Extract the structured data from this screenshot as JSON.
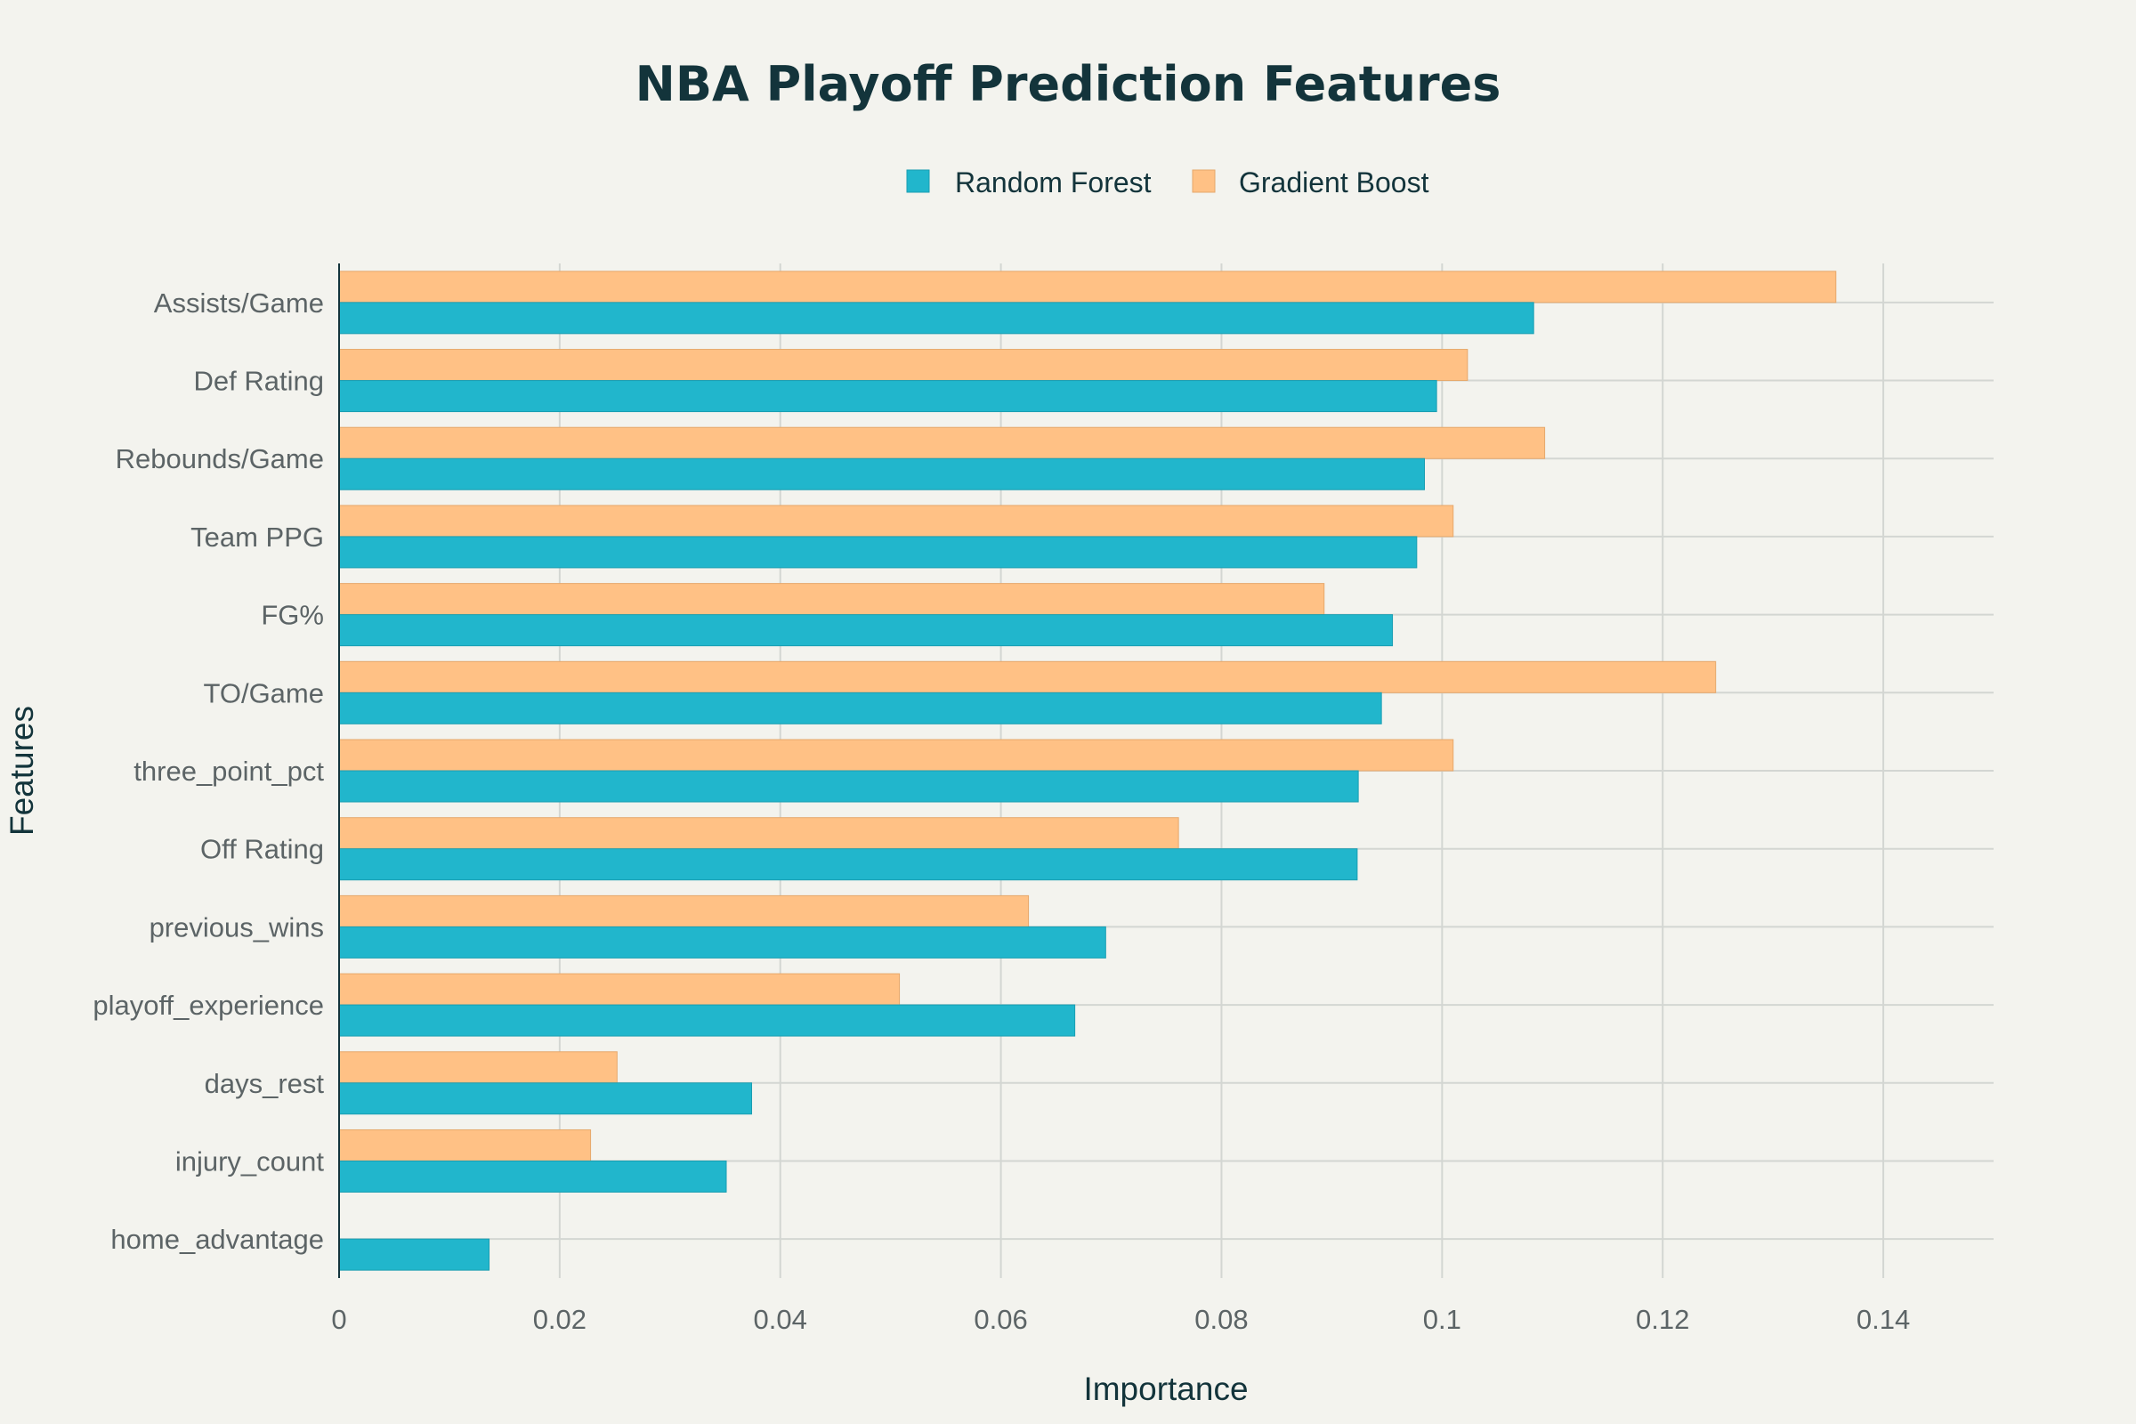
{
  "chart_data": {
    "type": "bar",
    "orientation": "horizontal",
    "title": "NBA Playoff Prediction Features",
    "xlabel": "Importance",
    "ylabel": "Features",
    "xlim": [
      0,
      0.15
    ],
    "xticks": [
      0,
      0.02,
      0.04,
      0.06,
      0.08,
      0.1,
      0.12,
      0.14
    ],
    "xtick_labels": [
      "0",
      "0.02",
      "0.04",
      "0.06",
      "0.08",
      "0.1",
      "0.12",
      "0.14"
    ],
    "grid": true,
    "legend_position": "top-center",
    "categories": [
      "Assists/Game",
      "Def Rating",
      "Rebounds/Game",
      "Team PPG",
      "FG%",
      "TO/Game",
      "three_point_pct",
      "Off Rating",
      "previous_wins",
      "playoff_experience",
      "days_rest",
      "injury_count",
      "home_advantage"
    ],
    "series": [
      {
        "name": "Random Forest",
        "color": "#21b6cc",
        "values": [
          0.1083,
          0.0995,
          0.0984,
          0.0977,
          0.0955,
          0.0945,
          0.0924,
          0.0923,
          0.0695,
          0.0667,
          0.0374,
          0.0351,
          0.0136
        ]
      },
      {
        "name": "Gradient Boost",
        "color": "#ffc185",
        "values": [
          0.1357,
          0.1023,
          0.1093,
          0.101,
          0.0893,
          0.1248,
          0.101,
          0.0761,
          0.0625,
          0.0508,
          0.0252,
          0.0228,
          0.0
        ]
      }
    ]
  },
  "colors": {
    "background": "#f3f3ee",
    "grid": "#d3d6d2",
    "title": "#13343b",
    "tick_text": "#5c6466"
  }
}
